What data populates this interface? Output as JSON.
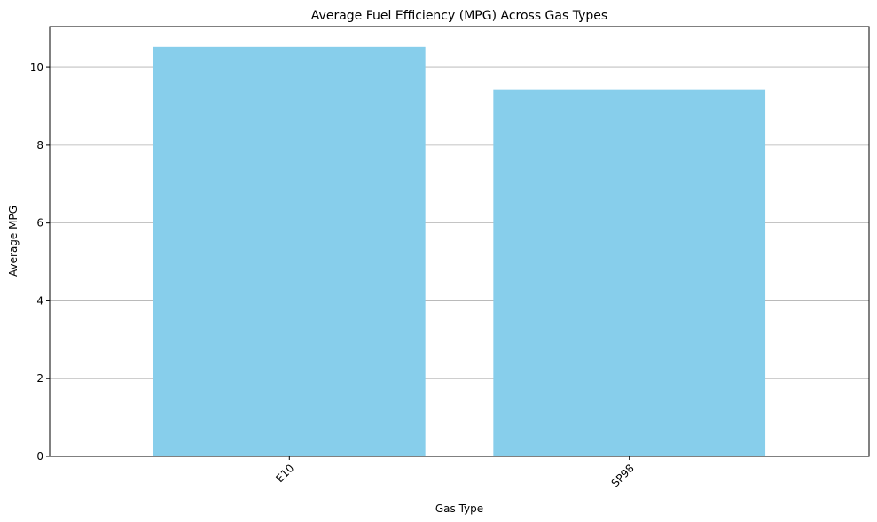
{
  "chart_data": {
    "type": "bar",
    "title": "Average Fuel Efficiency (MPG) Across Gas Types",
    "xlabel": "Gas Type",
    "ylabel": "Average MPG",
    "categories": [
      "E10",
      "SP98"
    ],
    "values": [
      10.53,
      9.44
    ],
    "ylim": [
      0,
      11.05
    ],
    "yticks": [
      0,
      2,
      4,
      6,
      8,
      10
    ],
    "grid": "y",
    "bar_color": "#87ceeb",
    "grid_color": "#b0b0b0",
    "xtick_rotation_deg": 45
  }
}
